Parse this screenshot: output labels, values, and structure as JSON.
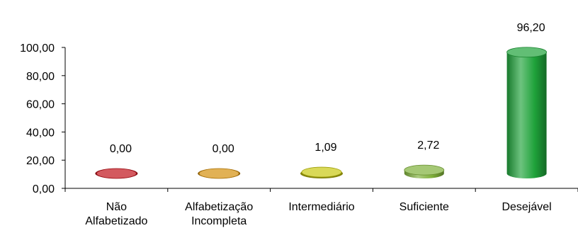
{
  "chart_data": {
    "type": "bar",
    "style": "3d-cylinder",
    "categories": [
      [
        "Não",
        "Alfabetizado"
      ],
      [
        "Alfabetização",
        "Incompleta"
      ],
      [
        "Intermediário"
      ],
      [
        "Suficiente"
      ],
      [
        "Desejável"
      ]
    ],
    "values": [
      0.0,
      0.0,
      1.09,
      2.72,
      96.2
    ],
    "value_labels": [
      "0,00",
      "0,00",
      "1,09",
      "2,72",
      "96,20"
    ],
    "colors": [
      "#c0121a",
      "#d48f0c",
      "#c8c810",
      "#7fb03a",
      "#1fa23a"
    ],
    "ylim": [
      0,
      100
    ],
    "y_ticks": [
      0,
      20,
      40,
      60,
      80,
      100
    ],
    "y_tick_labels": [
      "0,00",
      "20,00",
      "40,00",
      "60,00",
      "80,00",
      "100,00"
    ],
    "grid": false,
    "legend": "none"
  }
}
